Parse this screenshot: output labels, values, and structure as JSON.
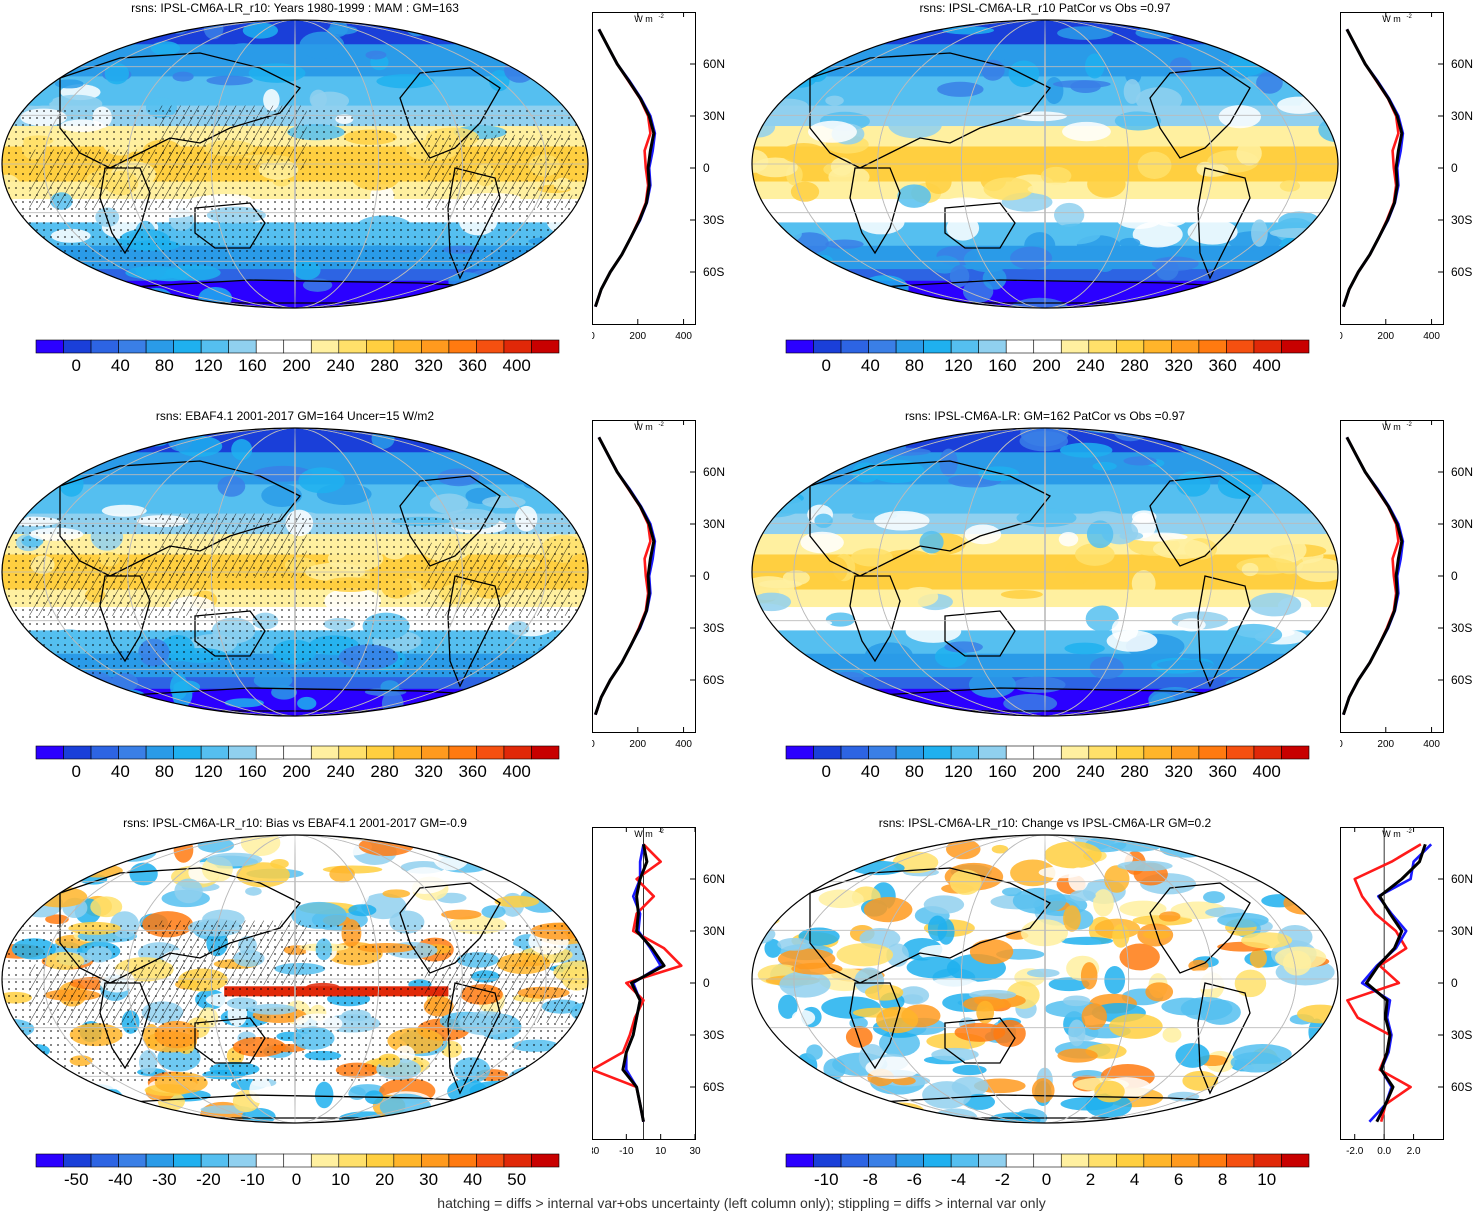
{
  "footnote": "hatching = diffs > internal var+obs uncertainty (left column only); stippling = diffs > internal var only",
  "colors": {
    "ramp_abs": [
      "#2b00ff",
      "#1a3fd9",
      "#2d64e3",
      "#3a7fe6",
      "#2a9be8",
      "#1fb0ef",
      "#55bff0",
      "#90d0ef",
      "#ffffff",
      "#ffffff",
      "#fff0a0",
      "#ffe06a",
      "#ffcf40",
      "#ffb52a",
      "#ff9a1e",
      "#ff7a10",
      "#f55010",
      "#e02808",
      "#c80000"
    ],
    "ramp_diff": [
      "#2b00ff",
      "#1a3fd9",
      "#2d64e3",
      "#3a7fe6",
      "#2a9be8",
      "#1fb0ef",
      "#55bff0",
      "#90d0ef",
      "#ffffff",
      "#ffffff",
      "#fff0a0",
      "#ffe06a",
      "#ffcf40",
      "#ffb52a",
      "#ff9a1e",
      "#ff7a10",
      "#f55010",
      "#e02808",
      "#c80000"
    ],
    "lat_lines": [
      "#ff1a1a",
      "#1a1aff",
      "#000000"
    ]
  },
  "chart_data": [
    {
      "type": "heatmap",
      "title": "rsns: IPSL-CM6A-LR_r10: Years 1980-1999 : MAM : GM=163",
      "colorbar_ticks": [
        "0",
        "40",
        "80",
        "120",
        "160",
        "200",
        "240",
        "280",
        "320",
        "360",
        "400"
      ],
      "zonal_ticks_x": [
        "0",
        "200",
        "400"
      ],
      "zonal_ticks_y": [
        "60N",
        "30N",
        "0",
        "30S",
        "60S"
      ],
      "zonal_units": "W m",
      "zonal_xlim": [
        0,
        450
      ],
      "lat": [
        -80,
        -70,
        -60,
        -50,
        -40,
        -30,
        -20,
        -10,
        0,
        10,
        20,
        30,
        40,
        50,
        60,
        70,
        80
      ],
      "series": [
        {
          "values": [
            15,
            40,
            80,
            130,
            170,
            205,
            235,
            245,
            235,
            230,
            255,
            245,
            210,
            160,
            110,
            70,
            30
          ]
        },
        {
          "values": [
            15,
            40,
            80,
            130,
            170,
            210,
            240,
            255,
            250,
            265,
            275,
            255,
            215,
            165,
            110,
            70,
            30
          ]
        },
        {
          "values": [
            15,
            40,
            80,
            130,
            170,
            208,
            238,
            250,
            245,
            255,
            270,
            250,
            212,
            162,
            110,
            70,
            30
          ]
        }
      ]
    },
    {
      "type": "heatmap",
      "title": "rsns: IPSL-CM6A-LR_r10 PatCor vs Obs =0.97",
      "colorbar_ticks": [
        "0",
        "40",
        "80",
        "120",
        "160",
        "200",
        "240",
        "280",
        "320",
        "360",
        "400"
      ],
      "zonal_ticks_x": [
        "0",
        "200",
        "400"
      ],
      "zonal_ticks_y": [
        "60N",
        "30N",
        "0",
        "30S",
        "60S"
      ],
      "zonal_units": "W m",
      "zonal_xlim": [
        0,
        450
      ],
      "lat": [
        -80,
        -70,
        -60,
        -50,
        -40,
        -30,
        -20,
        -10,
        0,
        10,
        20,
        30,
        40,
        50,
        60,
        70,
        80
      ],
      "series": [
        {
          "values": [
            15,
            40,
            80,
            130,
            170,
            205,
            235,
            245,
            235,
            230,
            255,
            245,
            210,
            160,
            110,
            70,
            30
          ]
        },
        {
          "values": [
            15,
            40,
            80,
            130,
            170,
            210,
            240,
            255,
            250,
            265,
            275,
            255,
            215,
            165,
            110,
            70,
            30
          ]
        },
        {
          "values": [
            15,
            40,
            80,
            130,
            170,
            208,
            238,
            250,
            245,
            255,
            270,
            250,
            212,
            162,
            110,
            70,
            30
          ]
        }
      ]
    },
    {
      "type": "heatmap",
      "title": "rsns: EBAF4.1 2001-2017 GM=164 Uncer=15 W/m2",
      "colorbar_ticks": [
        "0",
        "40",
        "80",
        "120",
        "160",
        "200",
        "240",
        "280",
        "320",
        "360",
        "400"
      ],
      "zonal_ticks_x": [
        "0",
        "200",
        "400"
      ],
      "zonal_ticks_y": [
        "60N",
        "30N",
        "0",
        "30S",
        "60S"
      ],
      "zonal_units": "W m",
      "zonal_xlim": [
        0,
        450
      ],
      "lat": [
        -80,
        -70,
        -60,
        -50,
        -40,
        -30,
        -20,
        -10,
        0,
        10,
        20,
        30,
        40,
        50,
        60,
        70,
        80
      ],
      "series": [
        {
          "values": [
            15,
            40,
            80,
            130,
            170,
            205,
            235,
            245,
            235,
            230,
            255,
            245,
            210,
            160,
            110,
            70,
            30
          ]
        },
        {
          "values": [
            15,
            40,
            80,
            130,
            170,
            210,
            240,
            255,
            250,
            265,
            275,
            255,
            215,
            165,
            110,
            70,
            30
          ]
        },
        {
          "values": [
            15,
            40,
            80,
            130,
            170,
            208,
            238,
            250,
            245,
            255,
            270,
            250,
            212,
            162,
            110,
            70,
            30
          ]
        }
      ]
    },
    {
      "type": "heatmap",
      "title": "rsns: IPSL-CM6A-LR: GM=162 PatCor vs Obs =0.97",
      "colorbar_ticks": [
        "0",
        "40",
        "80",
        "120",
        "160",
        "200",
        "240",
        "280",
        "320",
        "360",
        "400"
      ],
      "zonal_ticks_x": [
        "0",
        "200",
        "400"
      ],
      "zonal_ticks_y": [
        "60N",
        "30N",
        "0",
        "30S",
        "60S"
      ],
      "zonal_units": "W m",
      "zonal_xlim": [
        0,
        450
      ],
      "lat": [
        -80,
        -70,
        -60,
        -50,
        -40,
        -30,
        -20,
        -10,
        0,
        10,
        20,
        30,
        40,
        50,
        60,
        70,
        80
      ],
      "series": [
        {
          "values": [
            15,
            40,
            80,
            130,
            170,
            205,
            235,
            245,
            235,
            230,
            255,
            245,
            210,
            160,
            110,
            70,
            30
          ]
        },
        {
          "values": [
            15,
            40,
            80,
            130,
            170,
            210,
            240,
            255,
            250,
            265,
            275,
            255,
            215,
            165,
            110,
            70,
            30
          ]
        },
        {
          "values": [
            15,
            40,
            80,
            130,
            170,
            208,
            238,
            250,
            245,
            255,
            270,
            250,
            212,
            162,
            110,
            70,
            30
          ]
        }
      ]
    },
    {
      "type": "heatmap",
      "title": "rsns: IPSL-CM6A-LR_r10: Bias vs EBAF4.1 2001-2017 GM=-0.9",
      "colorbar_ticks": [
        "-50",
        "-40",
        "-30",
        "-20",
        "-10",
        "0",
        "10",
        "20",
        "30",
        "40",
        "50"
      ],
      "zonal_ticks_x": [
        "-30",
        "-10",
        "10",
        "30"
      ],
      "zonal_ticks_y": [
        "60N",
        "30N",
        "0",
        "30S",
        "60S"
      ],
      "zonal_units": "W m",
      "zonal_xlim": [
        -30,
        30
      ],
      "lat": [
        -80,
        -70,
        -60,
        -50,
        -40,
        -30,
        -20,
        -10,
        0,
        10,
        20,
        30,
        40,
        50,
        60,
        70,
        80
      ],
      "series": [
        {
          "values": [
            0,
            -2,
            -4,
            -30,
            -12,
            -8,
            -5,
            0,
            -10,
            22,
            12,
            -6,
            -4,
            6,
            -4,
            10,
            0
          ]
        },
        {
          "values": [
            0,
            -2,
            -4,
            -10,
            -10,
            -6,
            -4,
            -2,
            -6,
            10,
            4,
            -3,
            -2,
            -6,
            -2,
            -2,
            0
          ]
        },
        {
          "values": [
            0,
            -2,
            -4,
            -12,
            -10,
            -6,
            -4,
            -2,
            -7,
            12,
            5,
            -4,
            -3,
            -4,
            -2,
            2,
            0
          ]
        }
      ]
    },
    {
      "type": "heatmap",
      "title": "rsns: IPSL-CM6A-LR_r10: Change vs IPSL-CM6A-LR GM=0.2",
      "colorbar_ticks": [
        "-10",
        "-8",
        "-6",
        "-4",
        "-2",
        "0",
        "2",
        "4",
        "6",
        "8",
        "10"
      ],
      "zonal_ticks_x": [
        "-2.0",
        "0.0",
        "2.0"
      ],
      "zonal_ticks_y": [
        "60N",
        "30N",
        "0",
        "30S",
        "60S"
      ],
      "zonal_units": "W m",
      "zonal_xlim": [
        -3,
        4
      ],
      "lat": [
        -80,
        -70,
        -60,
        -50,
        -40,
        -30,
        -20,
        -10,
        0,
        10,
        20,
        30,
        40,
        50,
        60,
        70,
        80
      ],
      "series": [
        {
          "values": [
            -0.2,
            0.1,
            1.8,
            -0.3,
            0.2,
            0.4,
            -1.8,
            -2.5,
            1.0,
            -0.3,
            1.5,
            0.8,
            -0.6,
            -1.5,
            -2.0,
            0.5,
            2.5
          ]
        },
        {
          "values": [
            -1.0,
            0.1,
            0.5,
            -0.2,
            0.3,
            0.5,
            0.2,
            0.4,
            -1.5,
            -0.5,
            0.8,
            1.5,
            0.5,
            -0.4,
            1.8,
            2.0,
            3.2
          ]
        },
        {
          "values": [
            -0.5,
            0.1,
            0.6,
            -0.2,
            0.2,
            0.4,
            0.1,
            0.2,
            -1.2,
            -0.4,
            0.7,
            1.2,
            0.4,
            -0.3,
            1.2,
            2.4,
            2.8
          ]
        }
      ]
    }
  ]
}
